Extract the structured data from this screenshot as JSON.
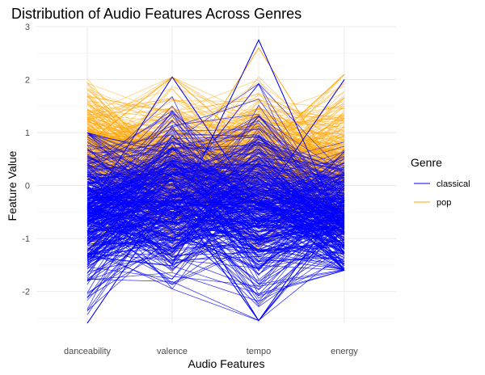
{
  "chart_data": {
    "type": "line",
    "subtype": "parallel-coordinates",
    "title": "Distribution of Audio Features Across Genres",
    "xlabel": "Audio Features",
    "ylabel": "Feature Value",
    "categories": [
      "danceability",
      "valence",
      "tempo",
      "energy"
    ],
    "ylim": [
      -2.6,
      3.0
    ],
    "yticks": [
      -2,
      -1,
      0,
      1,
      2,
      3
    ],
    "grid": true,
    "legend": {
      "title": "Genre",
      "position": "right"
    },
    "series": [
      {
        "name": "classical",
        "color": "#0000ff",
        "profile": {
          "center": [
            -0.45,
            -0.25,
            -0.35,
            -0.55
          ],
          "spread": [
            0.85,
            0.85,
            0.95,
            0.7
          ],
          "min": [
            -2.6,
            -1.95,
            -2.55,
            -1.6
          ],
          "max": [
            1.0,
            2.05,
            2.75,
            2.0
          ]
        }
      },
      {
        "name": "pop",
        "color": "#ffa500",
        "profile": {
          "center": [
            0.8,
            0.35,
            0.6,
            0.4
          ],
          "spread": [
            0.6,
            0.75,
            0.7,
            0.75
          ],
          "min": [
            -1.2,
            -1.6,
            -1.2,
            -1.0
          ],
          "max": [
            2.25,
            2.05,
            2.6,
            2.1
          ]
        }
      }
    ]
  }
}
